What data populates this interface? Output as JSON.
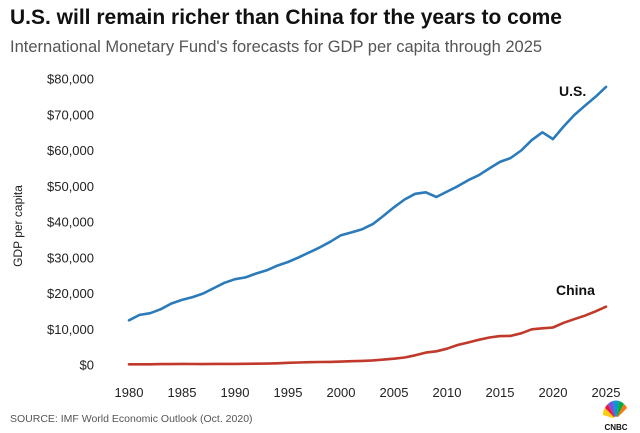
{
  "header": {
    "title": "U.S. will remain richer than China for the years to come",
    "subtitle": "International Monetary Fund's forecasts for GDP per capita through 2025"
  },
  "footer": {
    "source": "SOURCE: IMF World Economic Outlook (Oct. 2020)",
    "logo_text": "CNBC"
  },
  "colors": {
    "us": "#2b7bba",
    "china": "#c0392b",
    "tick": "#222222"
  },
  "chart_data": {
    "type": "line",
    "title": "U.S. will remain richer than China for the years to come",
    "subtitle": "International Monetary Fund's forecasts for GDP per capita through 2025",
    "xlabel": "",
    "ylabel": "GDP per capita",
    "xlim": [
      1980,
      2025
    ],
    "ylim": [
      0,
      80000
    ],
    "grid": false,
    "legend": "inline-labels",
    "x_ticks": [
      1980,
      1985,
      1990,
      1995,
      2000,
      2005,
      2010,
      2015,
      2020,
      2025
    ],
    "x_tick_labels": [
      "1980",
      "1985",
      "1990",
      "1995",
      "2000",
      "2005",
      "2010",
      "2015",
      "2020",
      "2025"
    ],
    "y_ticks": [
      0,
      10000,
      20000,
      30000,
      40000,
      50000,
      60000,
      70000,
      80000
    ],
    "y_tick_labels": [
      "$0",
      "$10,000",
      "$20,000",
      "$30,000",
      "$40,000",
      "$50,000",
      "$60,000",
      "$70,000",
      "$80,000"
    ],
    "x": [
      1980,
      1981,
      1982,
      1983,
      1984,
      1985,
      1986,
      1987,
      1988,
      1989,
      1990,
      1991,
      1992,
      1993,
      1994,
      1995,
      1996,
      1997,
      1998,
      1999,
      2000,
      2001,
      2002,
      2003,
      2004,
      2005,
      2006,
      2007,
      2008,
      2009,
      2010,
      2011,
      2012,
      2013,
      2014,
      2015,
      2016,
      2017,
      2018,
      2019,
      2020,
      2021,
      2022,
      2023,
      2024,
      2025
    ],
    "series": [
      {
        "name": "U.S.",
        "values": [
          12500,
          14000,
          14500,
          15600,
          17200,
          18200,
          19000,
          20000,
          21500,
          23000,
          24000,
          24500,
          25600,
          26500,
          27800,
          28800,
          30100,
          31500,
          32900,
          34500,
          36300,
          37100,
          38000,
          39400,
          41700,
          44100,
          46300,
          47900,
          48300,
          47000,
          48500,
          50000,
          51700,
          53100,
          55000,
          56800,
          57900,
          60000,
          62900,
          65100,
          63200,
          66700,
          69900,
          72500,
          75000,
          77800
        ]
      },
      {
        "name": "China",
        "values": [
          200,
          200,
          200,
          250,
          250,
          300,
          280,
          250,
          300,
          310,
          320,
          330,
          370,
          380,
          470,
          610,
          700,
          780,
          830,
          870,
          960,
          1050,
          1150,
          1290,
          1510,
          1750,
          2100,
          2700,
          3470,
          3830,
          4550,
          5600,
          6300,
          7050,
          7680,
          8070,
          8150,
          8880,
          9980,
          10260,
          10500,
          11800,
          12800,
          13800,
          15000,
          16300
        ]
      }
    ]
  }
}
